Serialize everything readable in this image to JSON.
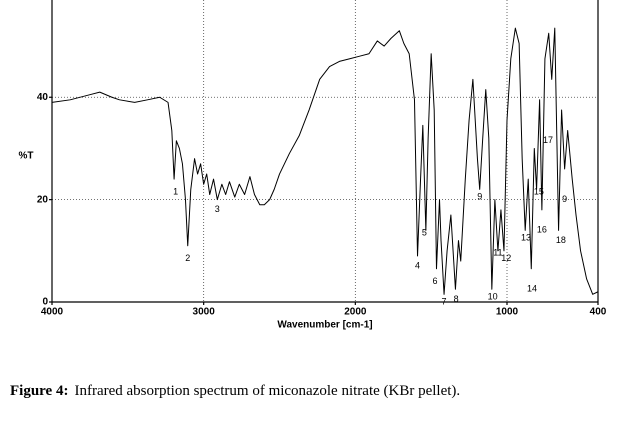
{
  "chart_data": {
    "type": "line",
    "ylabel": "%T",
    "xlabel": "Wavenumber [cm-1]",
    "xlim": [
      4000,
      400
    ],
    "xticks": [
      4000,
      3000,
      2000,
      1000,
      400
    ],
    "ylim": [
      0,
      59
    ],
    "yticks": [
      0,
      20,
      40
    ],
    "grid": true,
    "color": "#000000",
    "x": [
      4000,
      3880,
      3750,
      3685,
      3605,
      3555,
      3455,
      3370,
      3290,
      3235,
      3210,
      3195,
      3180,
      3160,
      3140,
      3120,
      3105,
      3085,
      3060,
      3040,
      3020,
      3000,
      2980,
      2960,
      2935,
      2910,
      2880,
      2855,
      2830,
      2795,
      2765,
      2730,
      2695,
      2665,
      2630,
      2600,
      2565,
      2535,
      2500,
      2435,
      2370,
      2305,
      2235,
      2170,
      2105,
      2040,
      1975,
      1910,
      1855,
      1810,
      1765,
      1710,
      1680,
      1645,
      1610,
      1590,
      1570,
      1555,
      1535,
      1520,
      1500,
      1480,
      1465,
      1445,
      1435,
      1415,
      1395,
      1370,
      1340,
      1320,
      1305,
      1275,
      1250,
      1225,
      1195,
      1180,
      1160,
      1140,
      1120,
      1100,
      1080,
      1060,
      1040,
      1020,
      1000,
      975,
      945,
      920,
      900,
      880,
      860,
      840,
      820,
      805,
      785,
      770,
      750,
      725,
      705,
      685,
      660,
      640,
      620,
      600,
      570,
      545,
      515,
      475,
      435,
      400
    ],
    "values": [
      39,
      39.5,
      40.5,
      41,
      40,
      39.5,
      39,
      39.5,
      40,
      39,
      33.5,
      24,
      31.5,
      30,
      27,
      20,
      11,
      22,
      28,
      25,
      27,
      23,
      25,
      21,
      24,
      20,
      23,
      21,
      23.5,
      20.5,
      23,
      21,
      24.5,
      21,
      19,
      19,
      20,
      22,
      25,
      29,
      32.5,
      37.5,
      43.5,
      46,
      47,
      47.5,
      48,
      48.5,
      51,
      50,
      51.5,
      53,
      50.5,
      48.5,
      39.5,
      9,
      24,
      34.5,
      14,
      32,
      48.5,
      37.5,
      6.5,
      20,
      12,
      1.5,
      10,
      17,
      2.5,
      12,
      8,
      24,
      35.5,
      43.5,
      28,
      22,
      32,
      41.5,
      32,
      2.5,
      20,
      10,
      18,
      10,
      35.5,
      47.5,
      53.5,
      50.5,
      28,
      14,
      24,
      6.5,
      30,
      22,
      39.5,
      18,
      47.5,
      52.5,
      43.5,
      53.5,
      14,
      37.5,
      26,
      33.5,
      24,
      17,
      10,
      4.5,
      1.5,
      2
    ],
    "annotations": [
      {
        "text": "1",
        "x": 3185,
        "y": 21.5
      },
      {
        "text": "2",
        "x": 3105,
        "y": 8.5
      },
      {
        "text": "3",
        "x": 2910,
        "y": 18
      },
      {
        "text": "4",
        "x": 1590,
        "y": 7
      },
      {
        "text": "5",
        "x": 1545,
        "y": 13.5
      },
      {
        "text": "6",
        "x": 1475,
        "y": 4
      },
      {
        "text": "7",
        "x": 1415,
        "y": 0
      },
      {
        "text": "8",
        "x": 1335,
        "y": 0.5
      },
      {
        "text": "9",
        "x": 1180,
        "y": 20.5
      },
      {
        "text": "10",
        "x": 1095,
        "y": 1
      },
      {
        "text": "11",
        "x": 1060,
        "y": 9.5
      },
      {
        "text": "12",
        "x": 1005,
        "y": 8.5
      },
      {
        "text": "13",
        "x": 875,
        "y": 12.5
      },
      {
        "text": "14",
        "x": 835,
        "y": 2.5
      },
      {
        "text": "15",
        "x": 790,
        "y": 21.5
      },
      {
        "text": "16",
        "x": 770,
        "y": 14
      },
      {
        "text": "17",
        "x": 730,
        "y": 31.5
      },
      {
        "text": "18",
        "x": 645,
        "y": 12
      },
      {
        "text": "9",
        "x": 620,
        "y": 20
      }
    ]
  },
  "caption": {
    "label": "Figure 4:",
    "text": "Infrared absorption spectrum of miconazole nitrate (KBr pellet)."
  }
}
